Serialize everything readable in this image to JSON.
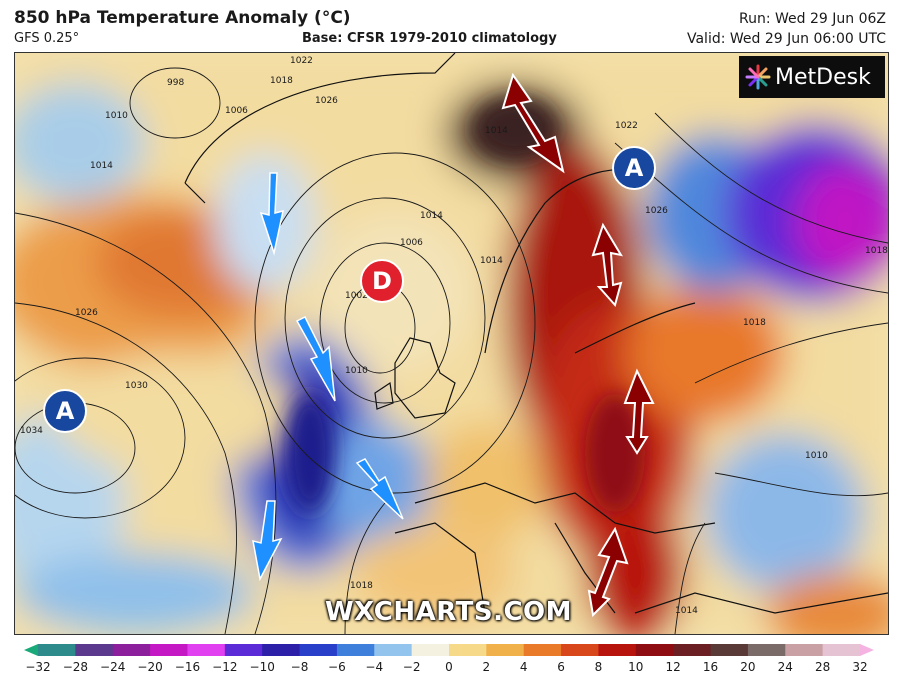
{
  "header": {
    "title": "850 hPa Temperature Anomaly (°C)",
    "model": "GFS 0.25°",
    "base": "Base: CFSR 1979-2010 climatology",
    "run": "Run: Wed 29 Jun 06Z",
    "valid": "Valid: Wed 29 Jun 06:00 UTC"
  },
  "logo": {
    "text": "MetDesk"
  },
  "watermark": "WXCHARTS.COM",
  "pressure_systems": [
    {
      "letter": "A",
      "type": "high",
      "color": "#17479e"
    },
    {
      "letter": "D",
      "type": "low",
      "color": "#e0202c"
    },
    {
      "letter": "A",
      "type": "high",
      "color": "#17479e"
    }
  ],
  "isobar_labels": [
    "998",
    "1006",
    "1018",
    "1022",
    "1026",
    "1010",
    "1014",
    "1026",
    "1030",
    "1034",
    "1014",
    "1006",
    "1002",
    "1010",
    "1018",
    "1014",
    "1022",
    "1026",
    "1018",
    "1010",
    "1014",
    "1018",
    "1014"
  ],
  "arrows": {
    "cold_color": "#1e90ff",
    "warm_color": "#8b0000"
  },
  "colorbar": {
    "ticks": [
      "−32",
      "−28",
      "−24",
      "−20",
      "−16",
      "−12",
      "−10",
      "−8",
      "−6",
      "−4",
      "−2",
      "0",
      "2",
      "4",
      "6",
      "8",
      "10",
      "12",
      "16",
      "20",
      "24",
      "28",
      "32"
    ],
    "colors": [
      "#1aaa7a",
      "#2e8b8b",
      "#5b3a8e",
      "#8c1f9c",
      "#c418c4",
      "#e040f0",
      "#5a2bd6",
      "#2c1fa8",
      "#2a3fc9",
      "#3f7fdc",
      "#93c4ee",
      "#f5f1e0",
      "#f7d98a",
      "#f0b04a",
      "#e87a2a",
      "#d8461c",
      "#b8140e",
      "#8e0d12",
      "#6b1f22",
      "#5a3a36",
      "#7a6a68",
      "#c9a1a5",
      "#e6c3d2",
      "#f4b3e0"
    ]
  }
}
